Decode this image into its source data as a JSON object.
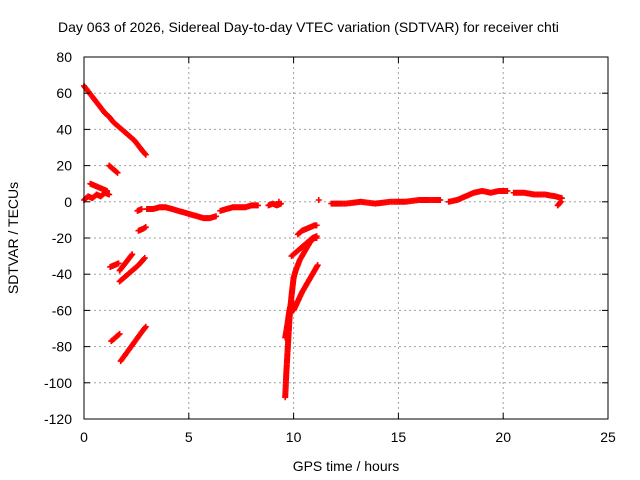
{
  "chart_data": {
    "type": "scatter",
    "title": "Day 063 of 2026, Sidereal Day-to-day VTEC variation (SDTVAR) for receiver chti",
    "xlabel": "GPS time / hours",
    "ylabel": "SDTVAR / TECUs",
    "xlim": [
      0,
      25
    ],
    "ylim": [
      -120,
      80
    ],
    "xticks": [
      0,
      5,
      10,
      15,
      20,
      25
    ],
    "yticks": [
      -120,
      -100,
      -80,
      -60,
      -40,
      -20,
      0,
      20,
      40,
      60,
      80
    ],
    "grid": true,
    "marker": "+",
    "color": "#ff0000",
    "series": [
      {
        "name": "SDTVAR",
        "segments": [
          {
            "x": [
              0.0,
              0.2,
              0.4,
              0.6,
              0.8,
              1.0,
              1.2,
              1.4,
              1.6,
              1.8,
              2.0,
              2.2,
              2.4,
              2.6,
              2.8,
              2.95
            ],
            "y": [
              64,
              61,
              58,
              55,
              52,
              49,
              47,
              44,
              42,
              40,
              38,
              36,
              34,
              31,
              28,
              26
            ]
          },
          {
            "x": [
              0.0,
              0.2,
              0.4,
              0.6,
              0.8,
              1.0,
              1.2
            ],
            "y": [
              1,
              3,
              2,
              4,
              3,
              5,
              4
            ]
          },
          {
            "x": [
              0.3,
              0.5,
              0.7,
              0.9,
              1.1
            ],
            "y": [
              10,
              9,
              8,
              7,
              6
            ]
          },
          {
            "x": [
              1.2,
              1.4,
              1.6
            ],
            "y": [
              20,
              18,
              16
            ]
          },
          {
            "x": [
              1.25,
              1.45,
              1.65
            ],
            "y": [
              -36,
              -35,
              -34
            ]
          },
          {
            "x": [
              1.3,
              1.5,
              1.7
            ],
            "y": [
              -77,
              -75,
              -73
            ]
          },
          {
            "x": [
              1.7,
              1.9,
              2.1,
              2.3
            ],
            "y": [
              -38,
              -35,
              -32,
              -29
            ]
          },
          {
            "x": [
              1.7,
              2.0,
              2.3,
              2.6,
              2.9
            ],
            "y": [
              -44,
              -41,
              -38,
              -35,
              -31
            ]
          },
          {
            "x": [
              1.75,
              2.0,
              2.25,
              2.5,
              2.75,
              2.95
            ],
            "y": [
              -88,
              -84,
              -80,
              -76,
              -72,
              -69
            ]
          },
          {
            "x": [
              2.6,
              2.8,
              2.95
            ],
            "y": [
              -16,
              -15,
              -14
            ]
          },
          {
            "x": [
              2.55,
              2.75
            ],
            "y": [
              -5,
              -4
            ]
          },
          {
            "x": [
              3.0,
              3.3,
              3.6,
              3.9,
              4.2,
              4.5,
              4.8,
              5.1,
              5.4,
              5.7,
              6.0,
              6.3
            ],
            "y": [
              -4,
              -4,
              -3,
              -3,
              -4,
              -5,
              -6,
              -7,
              -8,
              -9,
              -9,
              -8
            ]
          },
          {
            "x": [
              6.5,
              6.8,
              7.1,
              7.4,
              7.7,
              8.0,
              8.3
            ],
            "y": [
              -5,
              -4,
              -3,
              -3,
              -3,
              -2,
              -2
            ]
          },
          {
            "x": [
              8.8,
              9.0,
              9.2,
              9.4
            ],
            "y": [
              -2,
              -1,
              -2,
              -1
            ]
          },
          {
            "x": [
              9.6,
              9.65,
              9.7,
              9.75,
              9.8,
              9.85,
              9.9,
              9.95,
              10.0
            ],
            "y": [
              -108,
              -95,
              -85,
              -75,
              -65,
              -58,
              -52,
              -47,
              -42
            ]
          },
          {
            "x": [
              10.0,
              10.1,
              10.2,
              10.3,
              10.4,
              10.5,
              10.6,
              10.7,
              10.8,
              10.9,
              11.0,
              11.1
            ],
            "y": [
              -42,
              -38,
              -35,
              -32,
              -30,
              -28,
              -26,
              -24,
              -22,
              -21,
              -20,
              -20
            ]
          },
          {
            "x": [
              9.6,
              9.7,
              9.8,
              9.9
            ],
            "y": [
              -75,
              -68,
              -60,
              -55
            ]
          },
          {
            "x": [
              9.9,
              10.1,
              10.3,
              10.5,
              10.7,
              10.9,
              11.1
            ],
            "y": [
              -30,
              -28,
              -26,
              -24,
              -22,
              -20,
              -19
            ]
          },
          {
            "x": [
              10.2,
              10.4,
              10.6,
              10.8,
              11.0,
              11.1
            ],
            "y": [
              -18,
              -16,
              -15,
              -14,
              -13,
              -13
            ]
          },
          {
            "x": [
              10.0,
              10.2,
              10.4,
              10.6,
              10.8,
              11.0,
              11.15
            ],
            "y": [
              -60,
              -55,
              -50,
              -46,
              -42,
              -38,
              -35
            ]
          },
          {
            "x": [
              9.3
            ],
            "y": [
              0
            ]
          },
          {
            "x": [
              11.2
            ],
            "y": [
              1
            ]
          },
          {
            "x": [
              11.8,
              12.5,
              13.2,
              13.9,
              14.6,
              15.3,
              16.0,
              16.7,
              17.0
            ],
            "y": [
              -1,
              -1,
              0,
              -1,
              0,
              0,
              1,
              1,
              1
            ]
          },
          {
            "x": [
              17.4,
              17.8,
              18.2,
              18.6,
              19.0,
              19.4,
              19.8,
              20.2
            ],
            "y": [
              0,
              1,
              3,
              5,
              6,
              5,
              6,
              6
            ]
          },
          {
            "x": [
              20.5,
              21.0,
              21.5,
              22.0,
              22.5,
              22.8
            ],
            "y": [
              5,
              5,
              4,
              4,
              3,
              2
            ]
          },
          {
            "x": [
              22.6,
              22.75
            ],
            "y": [
              -2,
              0
            ]
          }
        ]
      }
    ]
  }
}
